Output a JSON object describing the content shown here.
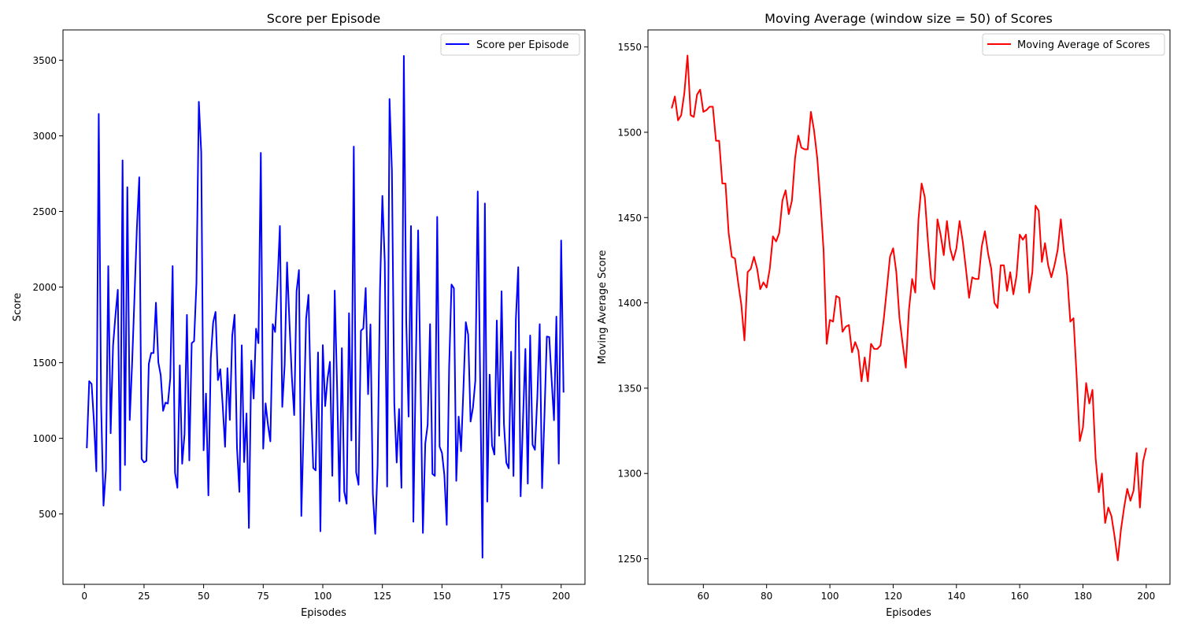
{
  "chart_data": [
    {
      "type": "line",
      "title": "Score per Episode",
      "xlabel": "Episodes",
      "ylabel": "Score",
      "xlim": [
        -9,
        210
      ],
      "ylim": [
        35,
        3700
      ],
      "xticks": [
        0,
        25,
        50,
        75,
        100,
        125,
        150,
        175,
        200
      ],
      "yticks": [
        500,
        1000,
        1500,
        2000,
        2500,
        3000,
        3500
      ],
      "legend": "top-right",
      "grid": false,
      "series": [
        {
          "name": "Score per Episode",
          "color": "#0000ff",
          "x_start": 1,
          "values": [
            935,
            1378,
            1360,
            1108,
            782,
            3145,
            1216,
            555,
            792,
            2138,
            1034,
            1612,
            1810,
            1982,
            657,
            2838,
            824,
            2660,
            1121,
            1493,
            1936,
            2388,
            2726,
            864,
            841,
            851,
            1492,
            1564,
            1564,
            1897,
            1503,
            1418,
            1182,
            1236,
            1230,
            1396,
            2139,
            772,
            673,
            1482,
            832,
            1029,
            1816,
            854,
            1629,
            1643,
            2028,
            3225,
            2891,
            921,
            1296,
            623,
            1528,
            1767,
            1836,
            1385,
            1457,
            1218,
            944,
            1464,
            1122,
            1678,
            1817,
            938,
            646,
            1615,
            843,
            1165,
            407,
            1514,
            1263,
            1725,
            1629,
            2887,
            932,
            1231,
            1089,
            980,
            1755,
            1703,
            2024,
            2404,
            1208,
            1485,
            2163,
            1771,
            1412,
            1154,
            1973,
            2112,
            487,
            1102,
            1790,
            1949,
            1249,
            804,
            788,
            1568,
            386,
            1616,
            1213,
            1396,
            1506,
            752,
            1977,
            1340,
            584,
            1596,
            648,
            568,
            1827,
            986,
            2929,
            775,
            693,
            1712,
            1726,
            1994,
            1292,
            1753,
            634,
            369,
            824,
            1984,
            2603,
            2167,
            681,
            3243,
            2770,
            1232,
            840,
            1194,
            673,
            3528,
            1782,
            1144,
            2404,
            449,
            1469,
            2375,
            1387,
            375,
            966,
            1090,
            1755,
            765,
            752,
            2464,
            945,
            904,
            758,
            428,
            1467,
            2017,
            1992,
            719,
            1144,
            915,
            1327,
            1768,
            1684,
            1111,
            1203,
            1382,
            2632,
            1416,
            211,
            2553,
            582,
            1421,
            953,
            893,
            1779,
            1017,
            1972,
            1095,
            839,
            802,
            1573,
            751,
            1788,
            2132,
            617,
            1128,
            1591,
            701,
            1680,
            958,
            924,
            1270,
            1755,
            671,
            1154,
            1673,
            1670,
            1389,
            1120,
            1805,
            833,
            2308,
            1303
          ]
        }
      ]
    },
    {
      "type": "line",
      "title": "Moving Average (window size = 50) of Scores",
      "xlabel": "Episodes",
      "ylabel": "Moving Average Score",
      "xlim": [
        42.5,
        207.5
      ],
      "ylim": [
        1235,
        1560
      ],
      "xticks": [
        60,
        80,
        100,
        120,
        140,
        160,
        180,
        200
      ],
      "yticks": [
        1250,
        1300,
        1350,
        1400,
        1450,
        1500,
        1550
      ],
      "legend": "top-right",
      "grid": false,
      "series": [
        {
          "name": "Moving Average of Scores",
          "color": "#ff0000",
          "x_start": 50,
          "values": [
            1514,
            1521,
            1507,
            1510,
            1523,
            1545,
            1510,
            1509,
            1522,
            1525,
            1512,
            1513,
            1515,
            1515,
            1495,
            1495,
            1470,
            1470,
            1441,
            1427,
            1426,
            1412,
            1399,
            1378,
            1418,
            1420,
            1427,
            1420,
            1408,
            1412,
            1409,
            1420,
            1439,
            1436,
            1441,
            1460,
            1466,
            1452,
            1460,
            1485,
            1498,
            1491,
            1490,
            1490,
            1512,
            1501,
            1485,
            1460,
            1431,
            1376,
            1390,
            1389,
            1404,
            1403,
            1383,
            1386,
            1387,
            1371,
            1377,
            1372,
            1354,
            1368,
            1354,
            1376,
            1373,
            1373,
            1375,
            1390,
            1408,
            1427,
            1432,
            1418,
            1391,
            1376,
            1362,
            1396,
            1414,
            1406,
            1449,
            1470,
            1462,
            1436,
            1414,
            1408,
            1449,
            1440,
            1428,
            1448,
            1432,
            1425,
            1432,
            1448,
            1436,
            1420,
            1403,
            1415,
            1414,
            1414,
            1433,
            1442,
            1429,
            1420,
            1400,
            1397,
            1422,
            1422,
            1407,
            1418,
            1405,
            1416,
            1440,
            1437,
            1440,
            1406,
            1418,
            1457,
            1454,
            1424,
            1435,
            1422,
            1415,
            1422,
            1431,
            1449,
            1430,
            1416,
            1389,
            1391,
            1357,
            1319,
            1327,
            1353,
            1341,
            1349,
            1309,
            1289,
            1300,
            1271,
            1280,
            1275,
            1263,
            1249,
            1267,
            1280,
            1291,
            1284,
            1290,
            1312,
            1280,
            1307,
            1315
          ]
        }
      ]
    }
  ]
}
